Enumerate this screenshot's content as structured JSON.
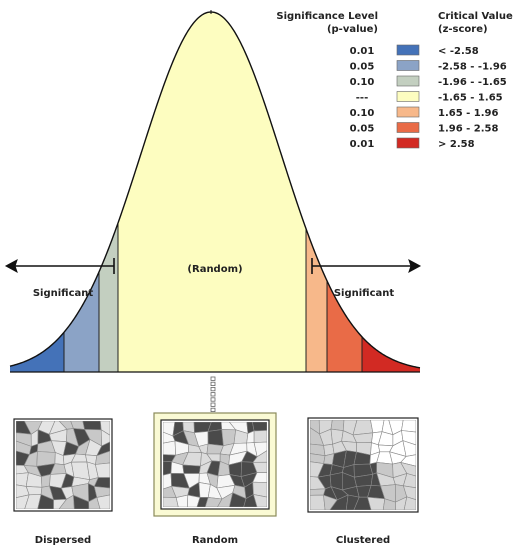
{
  "legend": {
    "p_header_line1": "Significance Level",
    "p_header_line2": "(p-value)",
    "z_header_line1": "Critical Value",
    "z_header_line2": "(z-score)",
    "rows": [
      {
        "p": "0.01",
        "z": "< -2.58",
        "color": "#4472b8"
      },
      {
        "p": "0.05",
        "z": "-2.58 - -1.96",
        "color": "#8ba3c6"
      },
      {
        "p": "0.10",
        "z": "-1.96 - -1.65",
        "color": "#c3cfc0"
      },
      {
        "p": "---",
        "z": "-1.65 - 1.65",
        "color": "#fdfdc0"
      },
      {
        "p": "0.10",
        "z": "1.65 - 1.96",
        "color": "#f7b88a"
      },
      {
        "p": "0.05",
        "z": "1.96 - 2.58",
        "color": "#e96b47"
      },
      {
        "p": "0.01",
        "z": "> 2.58",
        "color": "#d22a23"
      }
    ]
  },
  "curve": {
    "random_label": "(Random)",
    "left_label": "Significant",
    "right_label": "Significant"
  },
  "patterns": {
    "dispersed": "Dispersed",
    "random": "Random",
    "clustered": "Clustered"
  }
}
